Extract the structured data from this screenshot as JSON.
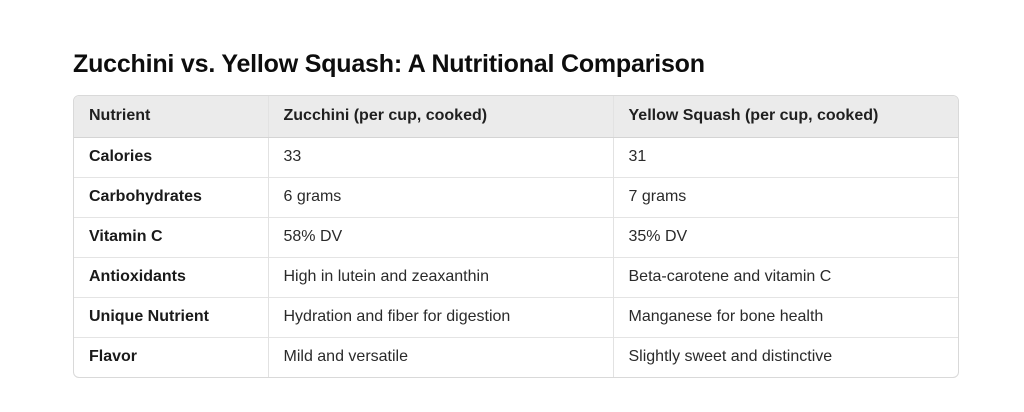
{
  "title": "Zucchini vs. Yellow Squash: A Nutritional Comparison",
  "table": {
    "headers": [
      "Nutrient",
      "Zucchini (per cup, cooked)",
      "Yellow Squash (per cup, cooked)"
    ],
    "rows": [
      [
        "Calories",
        "33",
        "31"
      ],
      [
        "Carbohydrates",
        "6 grams",
        "7 grams"
      ],
      [
        "Vitamin C",
        "58% DV",
        "35% DV"
      ],
      [
        "Antioxidants",
        "High in lutein and zeaxanthin",
        "Beta-carotene and vitamin C"
      ],
      [
        "Unique Nutrient",
        "Hydration and fiber for digestion",
        "Manganese for bone health"
      ],
      [
        "Flavor",
        "Mild and versatile",
        "Slightly sweet and distinctive"
      ]
    ]
  }
}
